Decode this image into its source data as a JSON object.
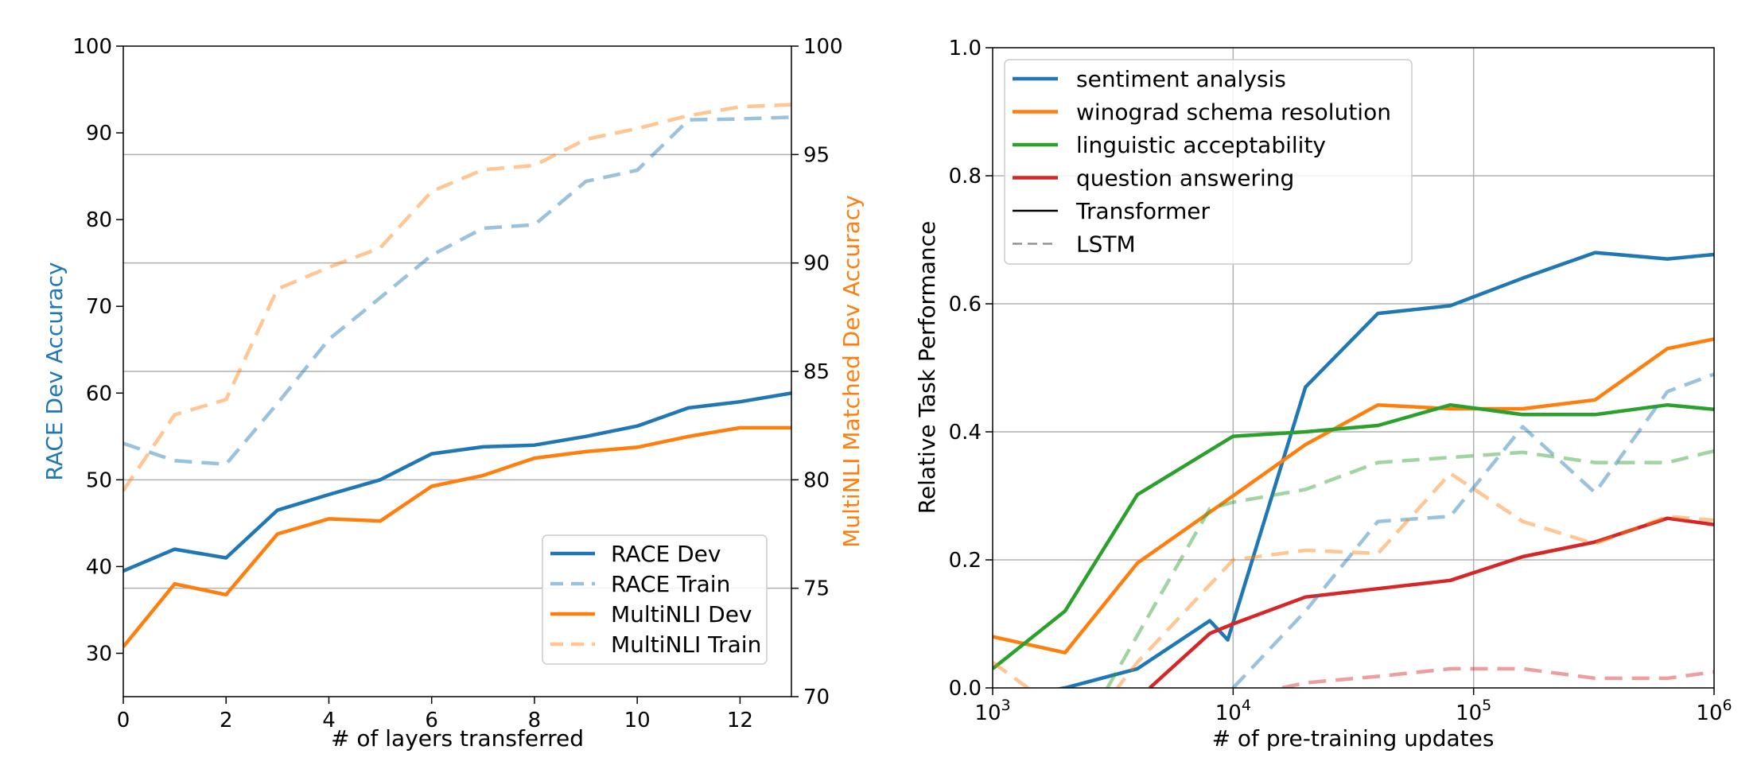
{
  "colors": {
    "blue": "#1f77b4",
    "orange": "#ff7f0e",
    "green": "#2ca02c",
    "red": "#d62728",
    "grid": "#b0b0b0",
    "black": "#000000",
    "gray": "#7f7f7f"
  },
  "chart_data": [
    {
      "type": "line",
      "xlabel": "# of layers transferred",
      "ylabel_left": "RACE Dev Accuracy",
      "ylabel_right": "MultiNLI Matched Dev Accuracy",
      "xlim": [
        0,
        13
      ],
      "ylim_left": [
        25,
        100
      ],
      "ylim_right": [
        70,
        100
      ],
      "x_ticks": [
        0,
        2,
        4,
        6,
        8,
        10,
        12
      ],
      "y_ticks_left": [
        30,
        40,
        50,
        60,
        70,
        80,
        90,
        100
      ],
      "y_ticks_right": [
        70,
        75,
        80,
        85,
        90,
        95,
        100
      ],
      "grid": "horizontal lines at right-axis ticks",
      "legend_position": "lower-right",
      "x": [
        0,
        1,
        2,
        3,
        4,
        5,
        6,
        7,
        8,
        9,
        10,
        11,
        12,
        13
      ],
      "series": [
        {
          "name": "RACE Dev",
          "axis": "left",
          "color": "#1f77b4",
          "dash": "solid",
          "opacity": 1,
          "values": [
            39.5,
            42.0,
            41.0,
            46.5,
            48.3,
            50.0,
            53.0,
            53.8,
            54.0,
            55.0,
            56.2,
            58.3,
            59.0,
            60.0
          ]
        },
        {
          "name": "RACE Train",
          "axis": "left",
          "color": "#1f77b4",
          "dash": "dashed",
          "opacity": 0.45,
          "values": [
            54.2,
            52.2,
            51.8,
            58.8,
            66.2,
            71.0,
            75.9,
            79.0,
            79.4,
            84.4,
            85.7,
            91.5,
            91.6,
            91.8
          ]
        },
        {
          "name": "MultiNLI Dev",
          "axis": "right",
          "color": "#ff7f0e",
          "dash": "solid",
          "opacity": 1,
          "values": [
            72.3,
            75.2,
            74.7,
            77.5,
            78.2,
            78.1,
            79.7,
            80.2,
            81.0,
            81.3,
            81.5,
            82.0,
            82.4,
            82.4
          ]
        },
        {
          "name": "MultiNLI Train",
          "axis": "right",
          "color": "#ff7f0e",
          "dash": "dashed",
          "opacity": 0.45,
          "values": [
            79.5,
            83.0,
            83.7,
            88.8,
            89.8,
            90.7,
            93.3,
            94.3,
            94.5,
            95.7,
            96.2,
            96.8,
            97.2,
            97.3
          ]
        }
      ]
    },
    {
      "type": "line",
      "xlabel": "# of pre-training updates",
      "ylabel": "Relative Task Performance",
      "xscale": "log",
      "xlim": [
        1000,
        1000000
      ],
      "ylim": [
        0,
        1
      ],
      "x_ticks": [
        {
          "value": 1000,
          "base": "10",
          "exp": "3"
        },
        {
          "value": 10000,
          "base": "10",
          "exp": "4"
        },
        {
          "value": 100000,
          "base": "10",
          "exp": "5"
        },
        {
          "value": 1000000,
          "base": "10",
          "exp": "6"
        }
      ],
      "y_ticks": [
        "0.0",
        "0.2",
        "0.4",
        "0.6",
        "0.8",
        "1.0"
      ],
      "grid": "on",
      "legend_position": "top-left",
      "legend": [
        {
          "label": "sentiment analysis",
          "color": "#1f77b4",
          "dash": "solid"
        },
        {
          "label": "winograd schema resolution",
          "color": "#ff7f0e",
          "dash": "solid"
        },
        {
          "label": "linguistic acceptability",
          "color": "#2ca02c",
          "dash": "solid"
        },
        {
          "label": "question answering",
          "color": "#d62728",
          "dash": "solid"
        },
        {
          "label": "Transformer",
          "color": "#000000",
          "dash": "solid"
        },
        {
          "label": "LSTM",
          "color": "#7f7f7f",
          "dash": "dashed"
        }
      ],
      "series": [
        {
          "task": "sentiment analysis",
          "model": "Transformer",
          "color": "#1f77b4",
          "dash": "solid",
          "opacity": 1,
          "x": [
            1000,
            2000,
            4000,
            8000,
            9500,
            20000,
            40000,
            80000,
            160000,
            320000,
            640000,
            1000000
          ],
          "y": [
            -0.02,
            0.0,
            0.03,
            0.105,
            0.075,
            0.47,
            0.585,
            0.597,
            0.64,
            0.68,
            0.67,
            0.677
          ]
        },
        {
          "task": "winograd schema resolution",
          "model": "Transformer",
          "color": "#ff7f0e",
          "dash": "solid",
          "opacity": 1,
          "x": [
            1000,
            2000,
            4000,
            10000,
            20000,
            40000,
            80000,
            160000,
            320000,
            640000,
            1000000
          ],
          "y": [
            0.08,
            0.055,
            0.195,
            0.3,
            0.38,
            0.442,
            0.436,
            0.436,
            0.45,
            0.53,
            0.545
          ]
        },
        {
          "task": "linguistic acceptability",
          "model": "Transformer",
          "color": "#2ca02c",
          "dash": "solid",
          "opacity": 1,
          "x": [
            1000,
            2000,
            4000,
            10000,
            20000,
            40000,
            80000,
            160000,
            320000,
            640000,
            1000000
          ],
          "y": [
            0.03,
            0.12,
            0.302,
            0.393,
            0.4,
            0.41,
            0.442,
            0.427,
            0.427,
            0.442,
            0.435
          ]
        },
        {
          "task": "question answering",
          "model": "Transformer",
          "color": "#d62728",
          "dash": "solid",
          "opacity": 1,
          "x": [
            4500,
            8000,
            10000,
            20000,
            40000,
            80000,
            160000,
            320000,
            640000,
            1000000
          ],
          "y": [
            0.0,
            0.085,
            0.1,
            0.142,
            0.155,
            0.168,
            0.205,
            0.228,
            0.265,
            0.255
          ]
        },
        {
          "task": "sentiment analysis",
          "model": "LSTM",
          "color": "#1f77b4",
          "dash": "dashed",
          "opacity": 0.45,
          "x": [
            10000,
            20000,
            40000,
            80000,
            160000,
            320000,
            640000,
            1000000
          ],
          "y": [
            0.0,
            0.12,
            0.26,
            0.268,
            0.408,
            0.305,
            0.463,
            0.49
          ]
        },
        {
          "task": "winograd schema resolution",
          "model": "LSTM",
          "color": "#ff7f0e",
          "dash": "dashed",
          "opacity": 0.45,
          "x": [
            1000,
            1400,
            3000,
            4000,
            10000,
            20000,
            40000,
            80000,
            160000,
            320000,
            640000,
            1000000
          ],
          "y": [
            0.04,
            0.0,
            -0.02,
            0.04,
            0.2,
            0.215,
            0.21,
            0.335,
            0.26,
            0.225,
            0.268,
            0.262
          ]
        },
        {
          "task": "linguistic acceptability",
          "model": "LSTM",
          "color": "#2ca02c",
          "dash": "dashed",
          "opacity": 0.45,
          "x": [
            3000,
            8000,
            10000,
            20000,
            40000,
            80000,
            160000,
            320000,
            640000,
            1000000
          ],
          "y": [
            0.0,
            0.28,
            0.29,
            0.31,
            0.352,
            0.36,
            0.368,
            0.352,
            0.352,
            0.37
          ]
        },
        {
          "task": "question answering",
          "model": "LSTM",
          "color": "#d62728",
          "dash": "dashed",
          "opacity": 0.45,
          "x": [
            16000,
            20000,
            40000,
            80000,
            160000,
            320000,
            640000,
            1000000
          ],
          "y": [
            0.0,
            0.008,
            0.018,
            0.03,
            0.03,
            0.015,
            0.015,
            0.025
          ]
        }
      ]
    }
  ]
}
